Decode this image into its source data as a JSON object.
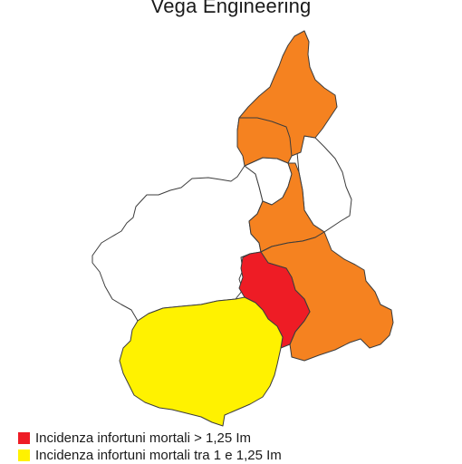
{
  "title": "Vega Engineering",
  "colors": {
    "over_1_25": "#ee1c25",
    "between_1_and_1_25": "#fff200",
    "orange_province": "#f58220",
    "no_fill": "#ffffff"
  },
  "legend": [
    {
      "color": "#ee1c25",
      "label": "Incidenza infortuni mortali > 1,25 Im"
    },
    {
      "color": "#fff200",
      "label": "Incidenza infortuni mortali tra 1 e 1,25 Im"
    }
  ]
}
